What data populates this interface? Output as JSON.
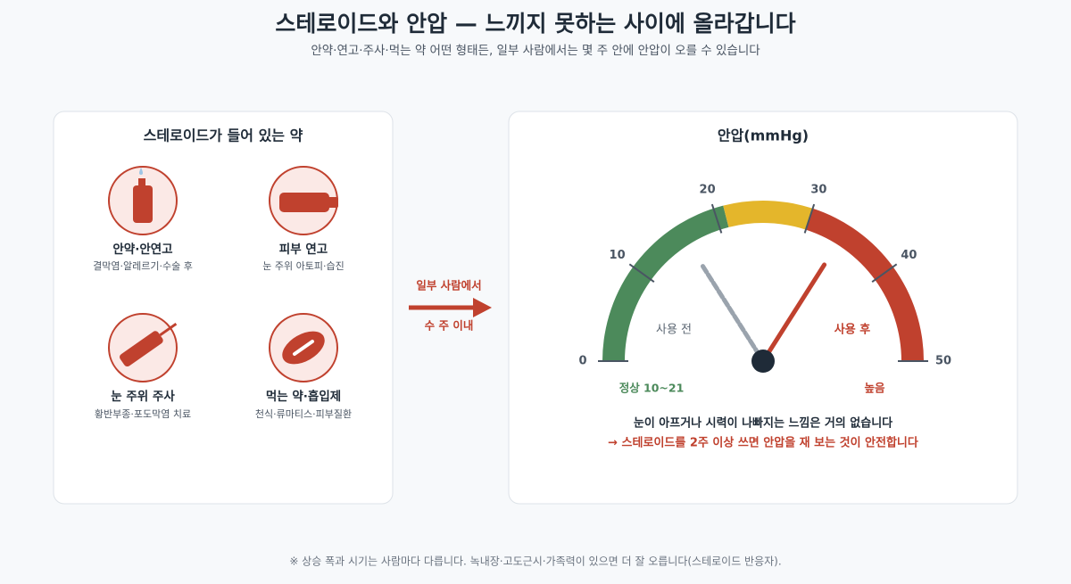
{
  "header": {
    "title": "스테로이드와 안압 — 느끼지 못하는 사이에 올라갑니다",
    "subtitle": "안약·연고·주사·먹는 약 어떤 형태든, 일부 사람에서는 몇 주 안에 안압이 오를 수 있습니다"
  },
  "medicines": {
    "title": "스테로이드가 들어 있는 약",
    "items": [
      {
        "name": "안약·안연고",
        "uses": "결막염·알레르기·수술 후"
      },
      {
        "name": "피부 연고",
        "uses": "눈 주위 아토피·습진"
      },
      {
        "name": "눈 주위 주사",
        "uses": "황반부종·포도막염 치료"
      },
      {
        "name": "먹는 약·흡입제",
        "uses": "천식·류마티스·피부질환"
      }
    ]
  },
  "connector": {
    "top": "일부 사람에서",
    "bottom": "수 주 이내"
  },
  "gauge": {
    "title": "안압(mmHg)",
    "range": [
      0,
      50
    ],
    "ticks": [
      0,
      10,
      20,
      30,
      40,
      50
    ],
    "zones": [
      {
        "from": 0,
        "to": 21,
        "color": "#4c8a5b"
      },
      {
        "from": 21,
        "to": 30,
        "color": "#e4b62b"
      },
      {
        "from": 30,
        "to": 50,
        "color": "#c0412e"
      }
    ],
    "needles": [
      {
        "label": "사용 전",
        "value": 16,
        "color": "#9aa3ad",
        "dashed": true
      },
      {
        "label": "사용 후",
        "value": 34,
        "color": "#c0412e",
        "dashed": false
      }
    ],
    "zone_labels": [
      "정상 10~21",
      "높음"
    ],
    "note": "눈이 아프거나 시력이 나빠지는 느낌은 거의 없습니다",
    "warning": "→ 스테로이드를 2주 이상 쓰면 안압을 재 보는 것이 안전합니다"
  },
  "footer": "※ 상승 폭과 시기는 사람마다 다릅니다. 녹내장·고도근시·가족력이 있으면 더 잘 오릅니다(스테로이드 반응자)."
}
